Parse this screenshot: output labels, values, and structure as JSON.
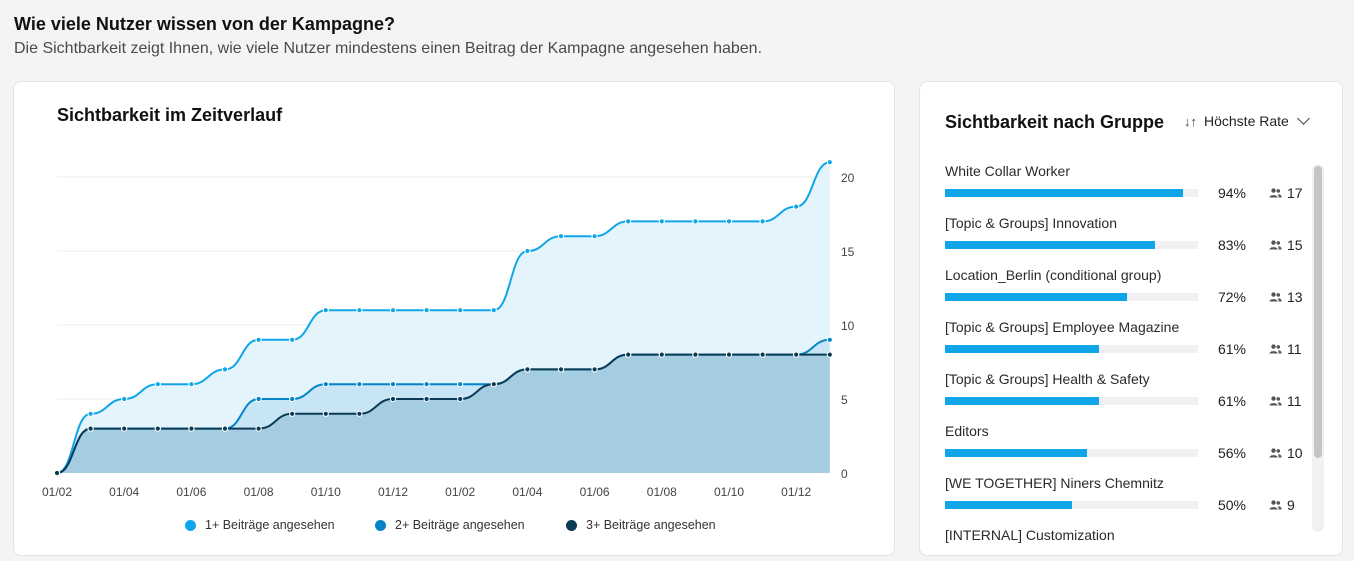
{
  "header": {
    "title": "Wie viele Nutzer wissen von der Kampagne?",
    "subtitle": "Die Sichtbarkeit zeigt Ihnen, wie viele Nutzer mindestens einen Beitrag der Kampagne angesehen haben."
  },
  "timeline_card": {
    "title": "Sichtbarkeit im Zeitverlauf"
  },
  "chart_data": {
    "type": "area",
    "title": "Sichtbarkeit im Zeitverlauf",
    "x_tick_labels": [
      "01/02",
      "01/04",
      "01/06",
      "01/08",
      "01/10",
      "01/12",
      "01/02",
      "01/04",
      "01/06",
      "01/08",
      "01/10",
      "01/12"
    ],
    "ylim": [
      0,
      21
    ],
    "y_ticks": [
      0,
      5,
      10,
      15,
      20
    ],
    "grid": true,
    "y_axis_position": "right",
    "legend_position": "bottom",
    "series": [
      {
        "name": "1+ Beiträge angesehen",
        "color": "#0ea5e9",
        "values": [
          0,
          4,
          5,
          6,
          6,
          7,
          9,
          9,
          11,
          11,
          11,
          11,
          11,
          11,
          15,
          16,
          16,
          17,
          17,
          17,
          17,
          17,
          18,
          21
        ]
      },
      {
        "name": "2+ Beiträge angesehen",
        "color": "#0284c7",
        "values": [
          0,
          3,
          3,
          3,
          3,
          3,
          5,
          5,
          6,
          6,
          6,
          6,
          6,
          6,
          7,
          7,
          7,
          8,
          8,
          8,
          8,
          8,
          8,
          9
        ]
      },
      {
        "name": "3+ Beiträge angesehen",
        "color": "#0b3a55",
        "values": [
          0,
          3,
          3,
          3,
          3,
          3,
          3,
          4,
          4,
          4,
          5,
          5,
          5,
          6,
          7,
          7,
          7,
          8,
          8,
          8,
          8,
          8,
          8,
          8
        ]
      }
    ]
  },
  "group_card": {
    "title": "Sichtbarkeit nach Gruppe",
    "sort_label": "Höchste Rate",
    "sort_icon": "sort-arrows-icon",
    "member_icon": "people-icon",
    "bar_color": "#0ea5e9",
    "groups": [
      {
        "name": "White Collar Worker",
        "rate": 94,
        "rate_label": "94%",
        "members": "17"
      },
      {
        "name": "[Topic & Groups] Innovation",
        "rate": 83,
        "rate_label": "83%",
        "members": "15"
      },
      {
        "name": "Location_Berlin (conditional group)",
        "rate": 72,
        "rate_label": "72%",
        "members": "13"
      },
      {
        "name": "[Topic & Groups] Employee Magazine",
        "rate": 61,
        "rate_label": "61%",
        "members": "11"
      },
      {
        "name": "[Topic & Groups] Health & Safety",
        "rate": 61,
        "rate_label": "61%",
        "members": "11"
      },
      {
        "name": "Editors",
        "rate": 56,
        "rate_label": "56%",
        "members": "10"
      },
      {
        "name": "[WE TOGETHER] Niners Chemnitz",
        "rate": 50,
        "rate_label": "50%",
        "members": "9"
      },
      {
        "name": "[INTERNAL] Customization"
      }
    ]
  }
}
